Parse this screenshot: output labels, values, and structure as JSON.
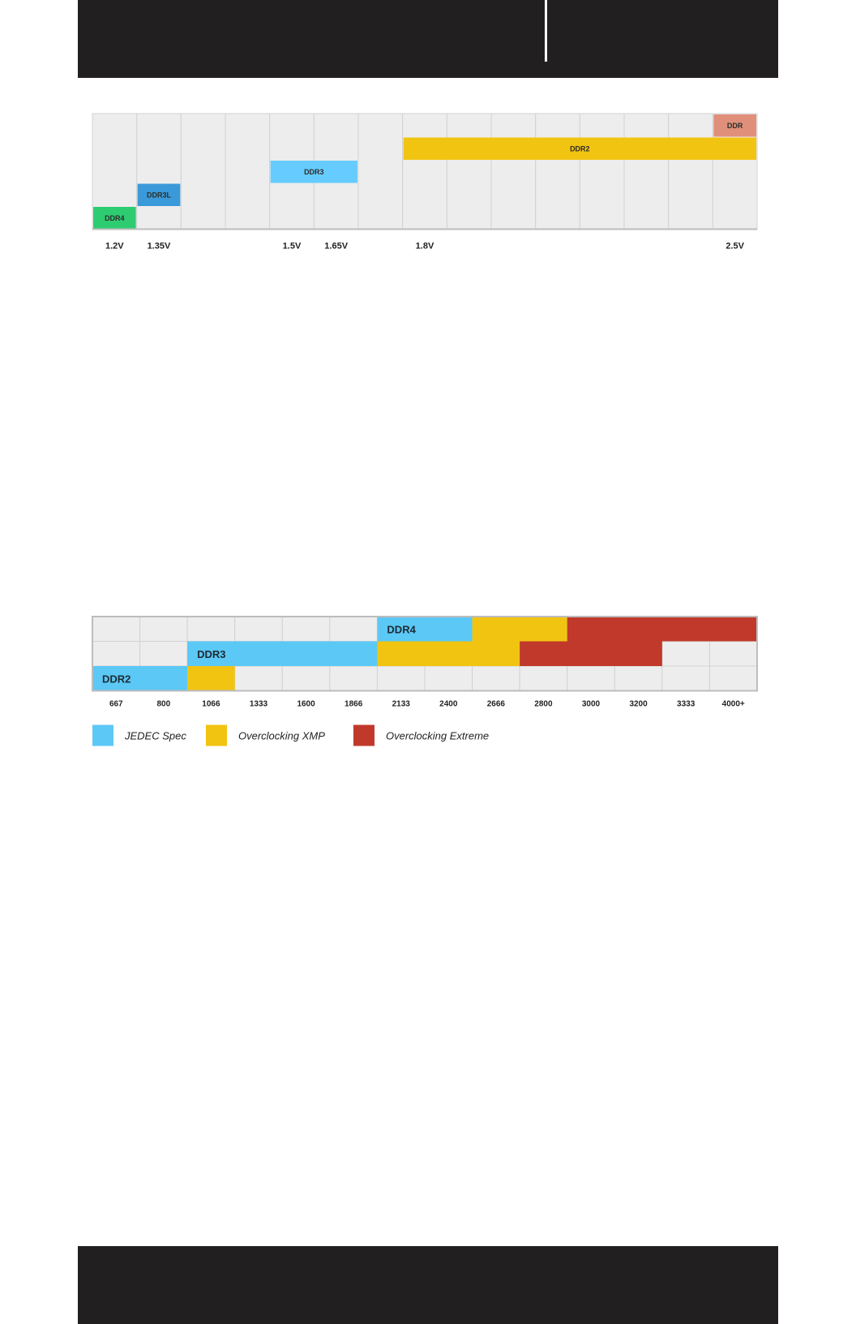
{
  "chart_data": [
    {
      "type": "bar",
      "orientation": "horizontal-range",
      "x_axis_kind": "voltage",
      "x_tick_labels": [
        "1.2V",
        "1.35V",
        "1.5V",
        "1.65V",
        "1.8V",
        "2.5V"
      ],
      "x_tick_columns": [
        0,
        1,
        4,
        5,
        7,
        14
      ],
      "columns": 15,
      "rows": 5,
      "grid": true,
      "series": [
        {
          "name": "DDR4",
          "color": "#2ecc71",
          "row": 4,
          "col_start": 0,
          "col_end": 1
        },
        {
          "name": "DDR3L",
          "color": "#3a9ad9",
          "row": 3,
          "col_start": 1,
          "col_end": 2
        },
        {
          "name": "DDR3",
          "color": "#66ccff",
          "row": 2,
          "col_start": 4,
          "col_end": 6
        },
        {
          "name": "DDR2",
          "color": "#f1c411",
          "row": 1,
          "col_start": 7,
          "col_end": 15
        },
        {
          "name": "DDR",
          "color": "#e0907a",
          "row": 0,
          "col_start": 14,
          "col_end": 15
        }
      ]
    },
    {
      "type": "bar",
      "orientation": "horizontal-range",
      "x_axis_kind": "speed",
      "x_tick_labels": [
        "667",
        "800",
        "1066",
        "1333",
        "1600",
        "1866",
        "2133",
        "2400",
        "2666",
        "2800",
        "3000",
        "3200",
        "3333",
        "4000+"
      ],
      "columns": 14,
      "rows": 3,
      "grid": true,
      "segments": [
        {
          "series": "JEDEC Spec",
          "label": "DDR4",
          "row": 0,
          "col_start": 6,
          "col_end": 8
        },
        {
          "series": "Overclocking XMP",
          "label": "",
          "row": 0,
          "col_start": 8,
          "col_end": 10
        },
        {
          "series": "Overclocking Extreme",
          "label": "",
          "row": 0,
          "col_start": 10,
          "col_end": 14
        },
        {
          "series": "JEDEC Spec",
          "label": "DDR3",
          "row": 1,
          "col_start": 2,
          "col_end": 6
        },
        {
          "series": "Overclocking XMP",
          "label": "",
          "row": 1,
          "col_start": 6,
          "col_end": 9
        },
        {
          "series": "Overclocking Extreme",
          "label": "",
          "row": 1,
          "col_start": 9,
          "col_end": 12
        },
        {
          "series": "JEDEC Spec",
          "label": "DDR2",
          "row": 2,
          "col_start": 0,
          "col_end": 2
        },
        {
          "series": "Overclocking XMP",
          "label": "",
          "row": 2,
          "col_start": 2,
          "col_end": 3
        }
      ],
      "legend": [
        {
          "name": "JEDEC Spec",
          "color": "#5bc8f5"
        },
        {
          "name": "Overclocking XMP",
          "color": "#f1c411"
        },
        {
          "name": "Overclocking Extreme",
          "color": "#c0392b"
        }
      ],
      "legend_position": "bottom-left"
    }
  ]
}
